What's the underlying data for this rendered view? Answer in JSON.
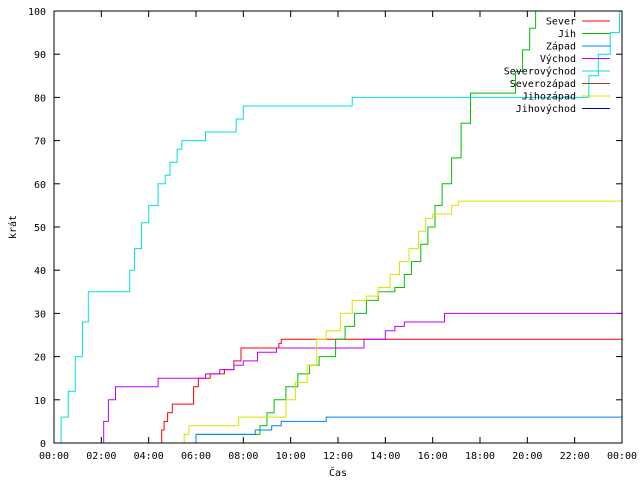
{
  "chart_data": {
    "type": "line",
    "title": "",
    "xlabel": "Čas",
    "ylabel": "krát",
    "xlim": [
      0,
      24
    ],
    "ylim": [
      0,
      100
    ],
    "x_ticks": [
      "00:00",
      "02:00",
      "04:00",
      "06:00",
      "08:00",
      "10:00",
      "12:00",
      "14:00",
      "16:00",
      "18:00",
      "20:00",
      "22:00",
      "00:00"
    ],
    "y_ticks": [
      "0",
      "10",
      "20",
      "30",
      "40",
      "50",
      "60",
      "70",
      "80",
      "90",
      "100"
    ],
    "grid": false,
    "legend_position": "top-right",
    "series": [
      {
        "name": "Sever",
        "color": "#ff0000",
        "points": [
          [
            0,
            0
          ],
          [
            4.5,
            0
          ],
          [
            4.55,
            3
          ],
          [
            4.65,
            5
          ],
          [
            4.8,
            7
          ],
          [
            5.0,
            9
          ],
          [
            5.8,
            9
          ],
          [
            5.9,
            13
          ],
          [
            6.1,
            15
          ],
          [
            6.6,
            16
          ],
          [
            7.2,
            17
          ],
          [
            7.6,
            19
          ],
          [
            7.9,
            22
          ],
          [
            9.5,
            23
          ],
          [
            9.6,
            24
          ],
          [
            24,
            24
          ]
        ]
      },
      {
        "name": "Jih",
        "color": "#00c000",
        "points": [
          [
            0,
            0
          ],
          [
            5.9,
            0
          ],
          [
            6.0,
            2
          ],
          [
            8.5,
            2
          ],
          [
            8.7,
            4
          ],
          [
            9.0,
            7
          ],
          [
            9.3,
            10
          ],
          [
            9.8,
            13
          ],
          [
            10.3,
            16
          ],
          [
            10.8,
            18
          ],
          [
            11.2,
            20
          ],
          [
            11.9,
            24
          ],
          [
            12.3,
            27
          ],
          [
            12.7,
            30
          ],
          [
            13.2,
            33
          ],
          [
            13.7,
            35
          ],
          [
            14.4,
            36
          ],
          [
            14.8,
            39
          ],
          [
            15.1,
            42
          ],
          [
            15.5,
            46
          ],
          [
            15.8,
            50
          ],
          [
            16.1,
            55
          ],
          [
            16.4,
            60
          ],
          [
            16.8,
            66
          ],
          [
            17.2,
            74
          ],
          [
            17.6,
            81
          ],
          [
            19.2,
            81
          ],
          [
            19.5,
            86
          ],
          [
            19.8,
            91
          ],
          [
            20.1,
            96
          ],
          [
            20.35,
            100
          ]
        ]
      },
      {
        "name": "Západ",
        "color": "#0080ff",
        "points": [
          [
            0,
            0
          ],
          [
            5.9,
            0
          ],
          [
            6.0,
            2
          ],
          [
            8.4,
            2
          ],
          [
            8.5,
            3
          ],
          [
            9.1,
            3
          ],
          [
            9.2,
            4
          ],
          [
            9.6,
            5
          ],
          [
            11.4,
            5
          ],
          [
            11.5,
            6
          ],
          [
            24,
            6
          ]
        ]
      },
      {
        "name": "Východ",
        "color": "#c000ff",
        "points": [
          [
            0,
            0
          ],
          [
            1.9,
            0
          ],
          [
            2.1,
            5
          ],
          [
            2.3,
            10
          ],
          [
            2.6,
            13
          ],
          [
            4.3,
            13
          ],
          [
            4.4,
            15
          ],
          [
            6.3,
            15
          ],
          [
            6.4,
            16
          ],
          [
            7.0,
            17
          ],
          [
            7.6,
            18
          ],
          [
            8.0,
            19
          ],
          [
            8.6,
            21
          ],
          [
            9.4,
            22
          ],
          [
            13.0,
            22
          ],
          [
            13.1,
            24
          ],
          [
            14.0,
            26
          ],
          [
            14.4,
            27
          ],
          [
            14.8,
            28
          ],
          [
            16.5,
            30
          ],
          [
            24,
            30
          ]
        ]
      },
      {
        "name": "Severovýchod",
        "color": "#00e0e0",
        "points": [
          [
            0,
            0
          ],
          [
            0.3,
            6
          ],
          [
            0.6,
            12
          ],
          [
            0.9,
            20
          ],
          [
            1.2,
            28
          ],
          [
            1.45,
            35
          ],
          [
            3.0,
            35
          ],
          [
            3.2,
            40
          ],
          [
            3.4,
            45
          ],
          [
            3.7,
            51
          ],
          [
            4.0,
            55
          ],
          [
            4.4,
            60
          ],
          [
            4.7,
            62
          ],
          [
            4.9,
            65
          ],
          [
            5.2,
            68
          ],
          [
            5.4,
            70
          ],
          [
            6.3,
            70
          ],
          [
            6.4,
            72
          ],
          [
            7.5,
            72
          ],
          [
            7.7,
            75
          ],
          [
            8.0,
            78
          ],
          [
            12.5,
            78
          ],
          [
            12.6,
            80
          ],
          [
            22.2,
            80
          ],
          [
            22.6,
            85
          ],
          [
            23.0,
            90
          ],
          [
            23.5,
            95
          ],
          [
            23.9,
            100
          ]
        ]
      },
      {
        "name": "Severozápad",
        "color": "#a04020",
        "points": []
      },
      {
        "name": "Jihozápad",
        "color": "#e0e000",
        "points": [
          [
            0,
            0
          ],
          [
            5.3,
            0
          ],
          [
            5.5,
            2
          ],
          [
            5.7,
            4
          ],
          [
            7.6,
            4
          ],
          [
            7.8,
            6
          ],
          [
            9.6,
            6
          ],
          [
            9.8,
            10
          ],
          [
            10.2,
            14
          ],
          [
            10.7,
            18
          ],
          [
            11.1,
            24
          ],
          [
            11.5,
            26
          ],
          [
            12.1,
            30
          ],
          [
            12.6,
            33
          ],
          [
            13.2,
            34
          ],
          [
            13.7,
            36
          ],
          [
            14.2,
            39
          ],
          [
            14.6,
            42
          ],
          [
            15.0,
            45
          ],
          [
            15.4,
            49
          ],
          [
            15.7,
            52
          ],
          [
            16.0,
            53
          ],
          [
            16.8,
            55
          ],
          [
            17.1,
            56
          ],
          [
            24,
            56
          ]
        ]
      },
      {
        "name": "Jihovýchod",
        "color": "#0000a0",
        "points": []
      }
    ]
  }
}
